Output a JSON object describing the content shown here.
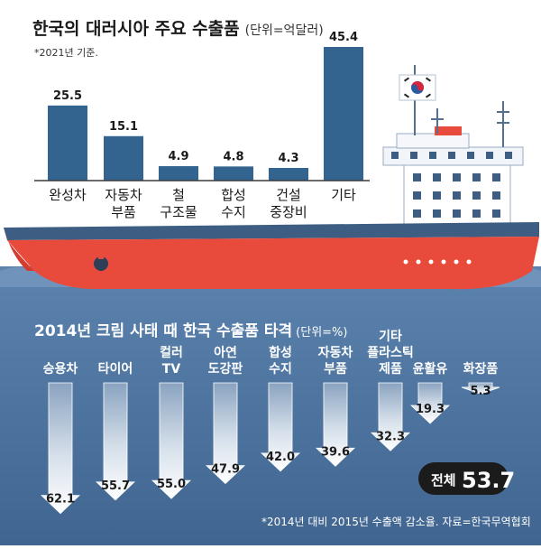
{
  "chart_data": [
    {
      "type": "bar",
      "title": "한국의 대러시아 주요 수출품",
      "unit": "(단위=억달러)",
      "note": "*2021년 기준.",
      "categories": [
        [
          "완성차"
        ],
        [
          "자동차",
          "부품"
        ],
        [
          "철",
          "구조물"
        ],
        [
          "합성",
          "수지"
        ],
        [
          "건설",
          "중장비"
        ],
        [
          "기타"
        ]
      ],
      "values": [
        25.5,
        15.1,
        4.9,
        4.8,
        4.3,
        45.4
      ],
      "value_labels": [
        "25.5",
        "15.1",
        "4.9",
        "4.8",
        "4.3",
        "45.4"
      ]
    },
    {
      "type": "bar",
      "title": "2014년 크림 사태 때 한국 수출품 타격",
      "unit": "(단위=%)",
      "categories": [
        [
          "승용차"
        ],
        [
          "타이어"
        ],
        [
          "컬러",
          "TV"
        ],
        [
          "아연",
          "도강판"
        ],
        [
          "합성",
          "수지"
        ],
        [
          "자동차",
          "부품"
        ],
        [
          "기타",
          "플라스틱",
          "제품"
        ],
        [
          "윤활유"
        ],
        [
          "화장품"
        ]
      ],
      "values": [
        62.1,
        55.7,
        55.0,
        47.9,
        42.0,
        39.6,
        32.3,
        19.3,
        5.3
      ],
      "value_labels": [
        "62.1",
        "55.7",
        "55.0",
        "47.9",
        "42.0",
        "39.6",
        "32.3",
        "19.3",
        "5.3"
      ],
      "total_label": "전체",
      "total_value": "53.7",
      "source": "*2014년 대비 2015년 수출액 감소율. 자료=한국무역협회"
    }
  ],
  "colors": {
    "bar_blue": "#33638f",
    "hull_red": "#e84b3c",
    "hull_navy": "#3d5e82",
    "water": "#4f77a4",
    "arrow_light": "#f6f8fb",
    "arrow_dark": "#8aa3c0"
  }
}
